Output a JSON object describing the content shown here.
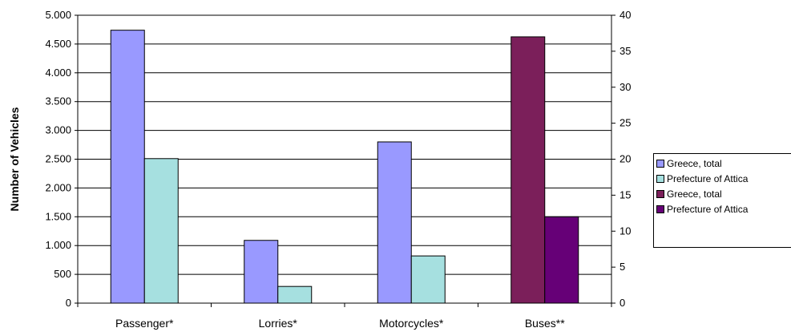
{
  "chart_data": {
    "type": "bar",
    "categories": [
      "Passenger*",
      "Lorries*",
      "Motorcycles*",
      "Buses**"
    ],
    "ylabel": "Number of Vehicles",
    "left_axis": {
      "ylim": [
        0,
        5000
      ],
      "ticks": [
        0,
        500,
        1000,
        1500,
        2000,
        2500,
        3000,
        3500,
        4000,
        4500,
        5000
      ],
      "tick_labels": [
        "0",
        "500",
        "1.000",
        "1.500",
        "2.000",
        "2.500",
        "3.000",
        "3.500",
        "4.000",
        "4.500",
        "5.000"
      ]
    },
    "right_axis": {
      "ylim": [
        0,
        40
      ],
      "ticks": [
        0,
        5,
        10,
        15,
        20,
        25,
        30,
        35,
        40
      ],
      "tick_labels": [
        "0",
        "5",
        "10",
        "15",
        "20",
        "25",
        "30",
        "35",
        "40"
      ]
    },
    "grid": true,
    "legend_position": "right",
    "series": [
      {
        "name": "Greece, total",
        "axis": "left",
        "color": "#9999FF",
        "values": [
          4740,
          1090,
          2800,
          null
        ]
      },
      {
        "name": "Prefecture of Attica",
        "axis": "left",
        "color": "#A6E0E0",
        "values": [
          2510,
          290,
          820,
          null
        ]
      },
      {
        "name": "Greece, total",
        "axis": "right",
        "color": "#7B1F5A",
        "values": [
          null,
          null,
          null,
          37
        ]
      },
      {
        "name": "Prefecture of Attica",
        "axis": "right",
        "color": "#660077",
        "values": [
          null,
          null,
          null,
          12
        ]
      }
    ]
  }
}
